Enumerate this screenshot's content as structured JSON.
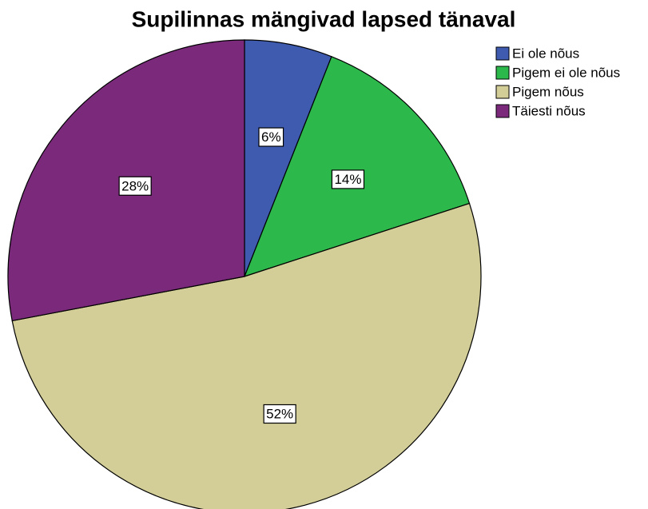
{
  "chart_data": {
    "type": "pie",
    "title": "Supilinnas mängivad lapsed tänaval",
    "categories": [
      "Ei ole nõus",
      "Pigem ei ole nõus",
      "Pigem nõus",
      "Täiesti nõus"
    ],
    "values": [
      6,
      14,
      52,
      28
    ],
    "value_labels": [
      "6%",
      "14%",
      "52%",
      "28%"
    ],
    "colors": [
      "#3e5bb0",
      "#2db84b",
      "#d3ce97",
      "#7b2a7b"
    ],
    "legend": "top-right"
  }
}
